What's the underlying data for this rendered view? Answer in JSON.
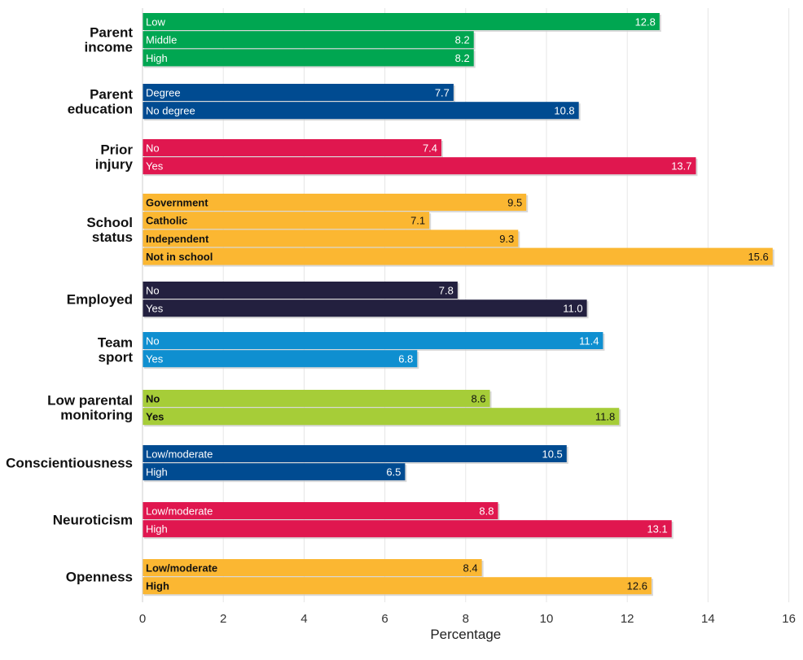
{
  "chart_data": {
    "type": "bar",
    "orientation": "horizontal",
    "xlabel": "Percentage",
    "xlim": [
      0,
      16
    ],
    "xticks": [
      "0",
      "2",
      "4",
      "6",
      "8",
      "10",
      "12",
      "14",
      "16"
    ],
    "grid": "vertical",
    "groups": [
      {
        "label": [
          "Parent",
          "income"
        ],
        "color": "#00a651",
        "text_color": "#ffffff",
        "bars": [
          {
            "label": "Low",
            "value": 12.8,
            "value_label": "12.8"
          },
          {
            "label": "Middle",
            "value": 8.2,
            "value_label": "8.2"
          },
          {
            "label": "High",
            "value": 8.2,
            "value_label": "8.2"
          }
        ]
      },
      {
        "label": [
          "Parent",
          "education"
        ],
        "color": "#004b91",
        "text_color": "#ffffff",
        "bars": [
          {
            "label": "Degree",
            "value": 7.7,
            "value_label": "7.7"
          },
          {
            "label": "No degree",
            "value": 10.8,
            "value_label": "10.8"
          }
        ]
      },
      {
        "label": [
          "Prior",
          "injury"
        ],
        "color": "#e0174f",
        "text_color": "#ffffff",
        "bars": [
          {
            "label": "No",
            "value": 7.4,
            "value_label": "7.4"
          },
          {
            "label": "Yes",
            "value": 13.7,
            "value_label": "13.7"
          }
        ]
      },
      {
        "label": [
          "School",
          "status"
        ],
        "color": "#fbb732",
        "text_color": "#111111",
        "bars": [
          {
            "label": "Government",
            "value": 9.5,
            "value_label": "9.5"
          },
          {
            "label": "Catholic",
            "value": 7.1,
            "value_label": "7.1"
          },
          {
            "label": "Independent",
            "value": 9.3,
            "value_label": "9.3"
          },
          {
            "label": "Not in school",
            "value": 15.6,
            "value_label": "15.6"
          }
        ]
      },
      {
        "label": [
          "Employed"
        ],
        "color": "#23203f",
        "text_color": "#ffffff",
        "bars": [
          {
            "label": "No",
            "value": 7.8,
            "value_label": "7.8"
          },
          {
            "label": "Yes",
            "value": 11.0,
            "value_label": "11.0"
          }
        ]
      },
      {
        "label": [
          "Team",
          "sport"
        ],
        "color": "#0f8fd0",
        "text_color": "#ffffff",
        "bars": [
          {
            "label": "No",
            "value": 11.4,
            "value_label": "11.4"
          },
          {
            "label": "Yes",
            "value": 6.8,
            "value_label": "6.8"
          }
        ]
      },
      {
        "label": [
          "Low parental",
          "monitoring"
        ],
        "color": "#a6cd38",
        "text_color": "#111111",
        "bars": [
          {
            "label": "No",
            "value": 8.6,
            "value_label": "8.6"
          },
          {
            "label": "Yes",
            "value": 11.8,
            "value_label": "11.8"
          }
        ]
      },
      {
        "label": [
          "Conscientiousness"
        ],
        "color": "#004b91",
        "text_color": "#ffffff",
        "bars": [
          {
            "label": "Low/moderate",
            "value": 10.5,
            "value_label": "10.5"
          },
          {
            "label": "High",
            "value": 6.5,
            "value_label": "6.5"
          }
        ]
      },
      {
        "label": [
          "Neuroticism"
        ],
        "color": "#e0174f",
        "text_color": "#ffffff",
        "bars": [
          {
            "label": "Low/moderate",
            "value": 8.8,
            "value_label": "8.8"
          },
          {
            "label": "High",
            "value": 13.1,
            "value_label": "13.1"
          }
        ]
      },
      {
        "label": [
          "Openness"
        ],
        "color": "#fbb732",
        "text_color": "#111111",
        "bars": [
          {
            "label": "Low/moderate",
            "value": 8.4,
            "value_label": "8.4"
          },
          {
            "label": "High",
            "value": 12.6,
            "value_label": "12.6"
          }
        ]
      }
    ]
  }
}
